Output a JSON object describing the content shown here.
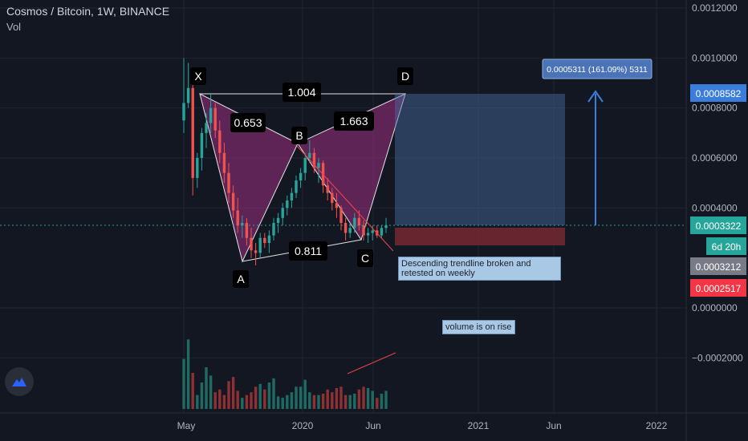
{
  "header": {
    "title": "Cosmos / Bitcoin, 1W, BINANCE",
    "indicator": "Vol"
  },
  "colors": {
    "background": "#131722",
    "grid": "#1f2430",
    "up": "#26a69a",
    "down": "#ef5350",
    "pattern_fill": "#9c2f7f",
    "target_box": "#4a6fa5",
    "stop_box": "#7a2a33",
    "current_price": "#26a69a",
    "target_price": "#3b7ddd",
    "stop_price": "#f23645",
    "trendline": "#e0404a",
    "dotted_line": "#26a69a"
  },
  "chart_data": {
    "type": "candlestick",
    "title": "Cosmos / Bitcoin, 1W, BINANCE",
    "y_tick_labels": [
      "0.0012000",
      "0.0010000",
      "0.0008000",
      "0.0006000",
      "0.0004000",
      "0.0000000",
      "−0.0002000"
    ],
    "x_tick_labels": [
      "May",
      "2020",
      "Jun",
      "2021",
      "Jun",
      "2022"
    ],
    "ylim": [
      -0.00028,
      0.00121
    ],
    "price_labels": [
      {
        "text": "0.0008582",
        "value": 0.0008582,
        "role": "target"
      },
      {
        "text": "0.0003322",
        "value": 0.0003322,
        "role": "current"
      },
      {
        "text": "6d 20h",
        "value": 0.0003,
        "role": "countdown"
      },
      {
        "text": "0.0003212",
        "value": 0.0003212,
        "role": "last"
      },
      {
        "text": "0.0002517",
        "value": 0.0002517,
        "role": "stop"
      }
    ],
    "harmonic_points": [
      {
        "label": "X",
        "date": "2019-05",
        "price": 0.00085
      },
      {
        "label": "A",
        "date": "2019-08",
        "price": 0.00018
      },
      {
        "label": "B",
        "date": "2019-12",
        "price": 0.00066
      },
      {
        "label": "C",
        "date": "2020-06",
        "price": 0.00026
      },
      {
        "label": "D",
        "date": "2020-07",
        "price": 0.00085
      }
    ],
    "ratios": [
      "1.004",
      "0.653",
      "1.663",
      "0.811"
    ],
    "projection_label": "0.0005311 (161.09%) 5311",
    "annotations": [
      "Descending trendline broken and retested on weekly",
      "volume is on rise"
    ],
    "candles": [
      [
        0.00075,
        0.001,
        0.0007,
        0.00082
      ],
      [
        0.00082,
        0.00098,
        0.0008,
        0.00088
      ],
      [
        0.00088,
        0.00091,
        0.00045,
        0.00052
      ],
      [
        0.00052,
        0.00062,
        0.00048,
        0.0006
      ],
      [
        0.0006,
        0.00072,
        0.00055,
        0.0007
      ],
      [
        0.0007,
        0.00078,
        0.00064,
        0.00074
      ],
      [
        0.00074,
        0.00086,
        0.0007,
        0.0008
      ],
      [
        0.0008,
        0.00082,
        0.00068,
        0.00071
      ],
      [
        0.00071,
        0.00075,
        0.00058,
        0.00062
      ],
      [
        0.00062,
        0.00066,
        0.0005,
        0.00054
      ],
      [
        0.00054,
        0.00058,
        0.00042,
        0.00046
      ],
      [
        0.00046,
        0.00049,
        0.00036,
        0.00039
      ],
      [
        0.00039,
        0.00044,
        0.0003,
        0.00033
      ],
      [
        0.00033,
        0.00037,
        0.00028,
        0.00034
      ],
      [
        0.00034,
        0.00036,
        0.00025,
        0.00028
      ],
      [
        0.00028,
        0.00032,
        0.0002,
        0.00023
      ],
      [
        0.00023,
        0.00026,
        0.00017,
        0.00022
      ],
      [
        0.00022,
        0.0003,
        0.0002,
        0.00028
      ],
      [
        0.00028,
        0.0003,
        0.00024,
        0.00026
      ],
      [
        0.00026,
        0.00031,
        0.00022,
        0.00029
      ],
      [
        0.00029,
        0.00036,
        0.00027,
        0.00034
      ],
      [
        0.00034,
        0.00038,
        0.0003,
        0.00036
      ],
      [
        0.00036,
        0.00042,
        0.00033,
        0.0004
      ],
      [
        0.0004,
        0.00045,
        0.00037,
        0.00043
      ],
      [
        0.00043,
        0.00048,
        0.0004,
        0.00046
      ],
      [
        0.00046,
        0.00053,
        0.00044,
        0.00051
      ],
      [
        0.00051,
        0.00056,
        0.00048,
        0.00054
      ],
      [
        0.00054,
        0.00062,
        0.00051,
        0.0006
      ],
      [
        0.0006,
        0.00067,
        0.00058,
        0.00062
      ],
      [
        0.00062,
        0.00064,
        0.00054,
        0.00056
      ],
      [
        0.00056,
        0.0006,
        0.0005,
        0.00058
      ],
      [
        0.00058,
        0.00059,
        0.00046,
        0.00049
      ],
      [
        0.00049,
        0.00052,
        0.00043,
        0.00046
      ],
      [
        0.00046,
        0.00048,
        0.00039,
        0.00042
      ],
      [
        0.00042,
        0.00046,
        0.00036,
        0.0004
      ],
      [
        0.0004,
        0.00041,
        0.00031,
        0.00034
      ],
      [
        0.00034,
        0.00036,
        0.00027,
        0.0003
      ],
      [
        0.0003,
        0.00034,
        0.00028,
        0.00032
      ],
      [
        0.00032,
        0.00038,
        0.0003,
        0.00036
      ],
      [
        0.00036,
        0.00039,
        0.00031,
        0.00033
      ],
      [
        0.00033,
        0.00035,
        0.00027,
        0.00029
      ],
      [
        0.00029,
        0.00032,
        0.00026,
        0.0003
      ],
      [
        0.0003,
        0.00033,
        0.00027,
        0.00031
      ],
      [
        0.00031,
        0.00033,
        0.00028,
        0.00029
      ],
      [
        0.00029,
        0.00033,
        0.00028,
        0.00032
      ],
      [
        0.00032,
        0.00036,
        0.0003,
        0.00033
      ]
    ],
    "volume": [
      0.00036,
      0.0005,
      0.00026,
      0.0001,
      0.00019,
      0.0003,
      0.00024,
      0.00012,
      0.00014,
      0.0001,
      0.0002,
      0.00023,
      0.00013,
      8e-05,
      0.0001,
      0.00012,
      0.00016,
      0.00018,
      0.00014,
      0.00019,
      0.00022,
      9e-05,
      8e-05,
      0.0001,
      0.00012,
      0.00016,
      0.00016,
      0.00021,
      0.00012,
      0.0001,
      0.0001,
      0.00011,
      0.00014,
      0.00012,
      0.00015,
      0.00016,
      0.0001,
      0.0001,
      0.00011,
      0.00014,
      0.00016,
      0.00015,
      0.00013,
      8e-05,
      0.00011,
      0.00013
    ],
    "volume_ylim": [
      0,
      0.00075
    ]
  }
}
